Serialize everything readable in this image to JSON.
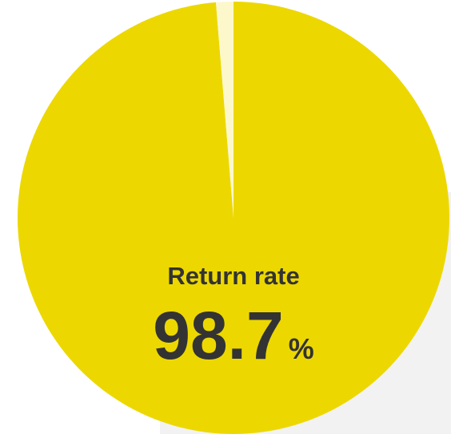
{
  "chart_data": {
    "type": "pie",
    "values": [
      98.7,
      1.3
    ],
    "colors": [
      "#ecd800",
      "#fdf8cc"
    ],
    "label": "Return rate",
    "value_labels": [
      "98.7",
      null
    ],
    "unit": "%"
  }
}
